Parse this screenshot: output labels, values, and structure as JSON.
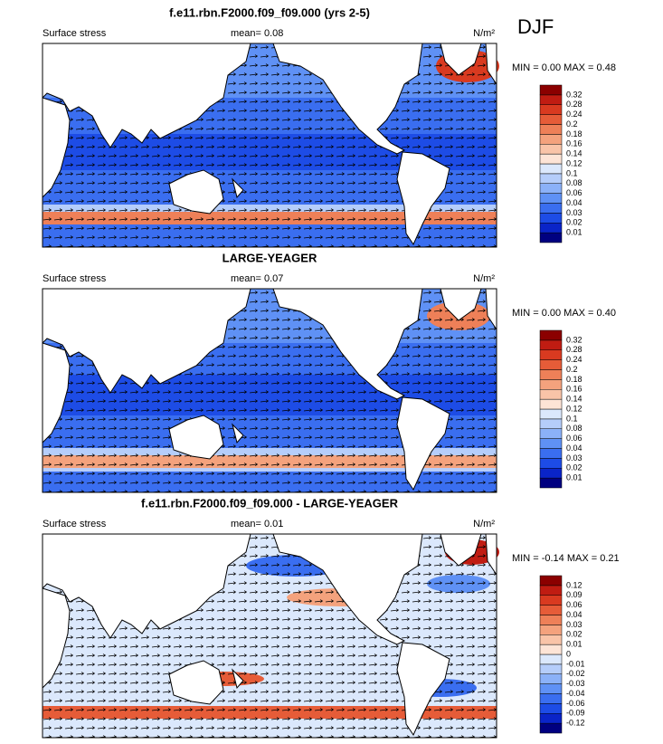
{
  "season": "DJF",
  "panels": [
    {
      "title": "f.e11.rbn.F2000.f09_f09.000 (yrs 2-5)",
      "variable": "Surface stress",
      "mean": "mean=  0.08",
      "units": "N/m²",
      "min_max": "MIN =  0.00 MAX =  0.48",
      "colorbar": {
        "labels": [
          "0.01",
          "0.02",
          "0.03",
          "0.04",
          "0.06",
          "0.08",
          "0.1",
          "0.12",
          "0.14",
          "0.16",
          "0.18",
          "0.2",
          "0.24",
          "0.28",
          "0.32"
        ],
        "colors": [
          "#000080",
          "#0a24c8",
          "#1d4ce6",
          "#3a6ef0",
          "#5f91f5",
          "#8bb1f8",
          "#b5cdfa",
          "#dbe8fc",
          "#fde4d6",
          "#f9c4a8",
          "#f4a27d",
          "#ee8058",
          "#e65c38",
          "#d93a20",
          "#c01c12",
          "#8b0000"
        ]
      }
    },
    {
      "title": "LARGE-YEAGER",
      "variable": "Surface stress",
      "mean": "mean=  0.07",
      "units": "N/m²",
      "min_max": "MIN =  0.00 MAX =  0.40",
      "colorbar": {
        "labels": [
          "0.01",
          "0.02",
          "0.03",
          "0.04",
          "0.06",
          "0.08",
          "0.1",
          "0.12",
          "0.14",
          "0.16",
          "0.18",
          "0.2",
          "0.24",
          "0.28",
          "0.32"
        ],
        "colors": [
          "#000080",
          "#0a24c8",
          "#1d4ce6",
          "#3a6ef0",
          "#5f91f5",
          "#8bb1f8",
          "#b5cdfa",
          "#dbe8fc",
          "#fde4d6",
          "#f9c4a8",
          "#f4a27d",
          "#ee8058",
          "#e65c38",
          "#d93a20",
          "#c01c12",
          "#8b0000"
        ]
      }
    },
    {
      "title": "f.e11.rbn.F2000.f09_f09.000 - LARGE-YEAGER",
      "variable": "Surface stress",
      "mean": "mean=  0.01",
      "units": "N/m²",
      "min_max": "MIN = -0.14 MAX =  0.21",
      "colorbar": {
        "labels": [
          "-0.12",
          "-0.09",
          "-0.06",
          "-0.04",
          "-0.03",
          "-0.02",
          "-0.01",
          "0",
          "0.01",
          "0.02",
          "0.03",
          "0.04",
          "0.06",
          "0.09",
          "0.12"
        ],
        "colors": [
          "#000080",
          "#0a24c8",
          "#1d4ce6",
          "#3a6ef0",
          "#5f91f5",
          "#8bb1f8",
          "#b5cdfa",
          "#dbe8fc",
          "#fde4d6",
          "#f9c4a8",
          "#f4a27d",
          "#ee8058",
          "#e65c38",
          "#d93a20",
          "#c01c12",
          "#8b0000"
        ]
      }
    }
  ]
}
